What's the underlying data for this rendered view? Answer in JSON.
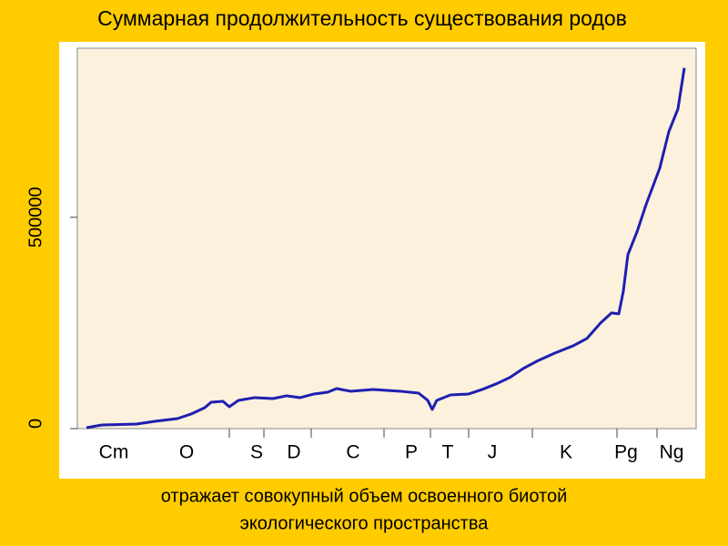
{
  "chart_data": {
    "type": "line",
    "title": "Суммарная продолжительность существования родов",
    "caption": [
      "отражает совокупный объем освоенного биотой",
      "экологического пространства"
    ],
    "x": [
      10,
      27,
      65,
      85,
      110,
      125,
      140,
      147,
      160,
      167,
      177,
      195,
      215,
      230,
      245,
      260,
      275,
      285,
      300,
      325,
      355,
      375,
      385,
      390,
      395,
      410,
      430,
      445,
      460,
      475,
      490,
      505,
      525,
      545,
      560,
      575,
      587,
      595,
      600,
      605,
      615,
      625,
      640,
      650,
      660,
      667
    ],
    "series": [
      {
        "color": "#1f1fb0",
        "values": [
          2155,
          8600,
          10800,
          17200,
          23700,
          34500,
          49600,
          62500,
          64700,
          51700,
          66800,
          73300,
          71100,
          77600,
          73300,
          81900,
          86200,
          94800,
          88400,
          92700,
          88400,
          84000,
          66800,
          45300,
          66800,
          79700,
          81900,
          92700,
          105600,
          120700,
          142200,
          159500,
          178900,
          196100,
          213400,
          250000,
          273700,
          271600,
          325400,
          411600,
          465500,
          530200,
          616400,
          702600,
          756500,
          853400
        ]
      }
    ],
    "xlim": [
      0,
      680
    ],
    "xticks": [
      167,
      205,
      257,
      337,
      388,
      430,
      500,
      593,
      637
    ],
    "period_labels": [
      {
        "value": 40,
        "label": "Cm"
      },
      {
        "value": 120,
        "label": "O"
      },
      {
        "value": 197,
        "label": "S"
      },
      {
        "value": 238,
        "label": "D"
      },
      {
        "value": 303,
        "label": "C"
      },
      {
        "value": 367,
        "label": "P"
      },
      {
        "value": 407,
        "label": "T"
      },
      {
        "value": 456,
        "label": "J"
      },
      {
        "value": 537,
        "label": "K"
      },
      {
        "value": 603,
        "label": "Pg"
      },
      {
        "value": 653,
        "label": "Ng"
      }
    ],
    "ylim": [
      0,
      900000
    ],
    "yticks": [
      0,
      500000
    ]
  }
}
